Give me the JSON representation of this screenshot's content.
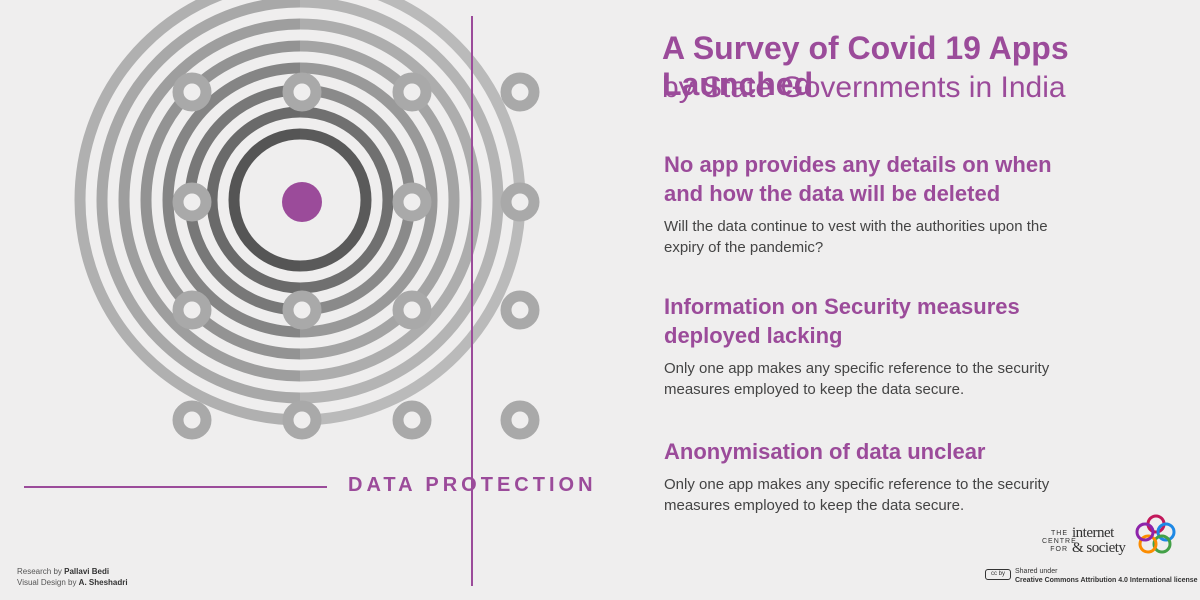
{
  "title": {
    "line1": "A Survey of Covid 19 Apps Launched",
    "line2": "by State Governments in India"
  },
  "findings": [
    {
      "heading": "No app provides any details on when and how the data will be deleted",
      "body": "Will the data continue to vest with the authorities upon the expiry of the pandemic?"
    },
    {
      "heading": "Information on Security measures deployed lacking",
      "body": "Only one app makes any specific reference to the security measures employed to keep the data secure."
    },
    {
      "heading": "Anonymisation of data unclear",
      "body": "Only one app makes any specific reference to the security measures employed to keep the data secure."
    }
  ],
  "section_label": "DATA PROTECTION",
  "credits": {
    "research_prefix": "Research by ",
    "research_name": "Pallavi Bedi",
    "design_prefix": "Visual Design by ",
    "design_name": "A. Sheshadri"
  },
  "logo": {
    "small_text": "THE CENTRE FOR",
    "line1": "internet",
    "line2": "& society"
  },
  "license": {
    "badge": "cc by",
    "line1": "Shared under",
    "line2": "Creative Commons Attribution 4.0 International license"
  },
  "colors": {
    "accent": "#9b4b9a",
    "background": "#efeeee",
    "ring_dark": "#555555",
    "ring_mid": "#7a7a7a",
    "ring_light": "#a9a9a9"
  }
}
